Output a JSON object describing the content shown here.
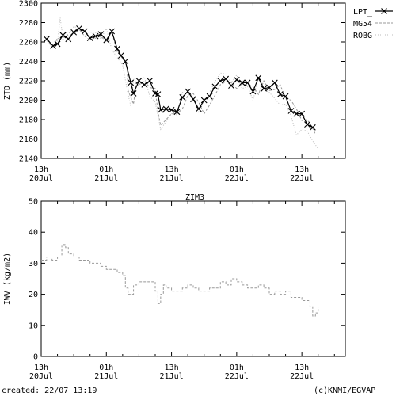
{
  "footer": {
    "created": "created: 22/07 13:19",
    "credit": "(c)KNMI/EGVAP"
  },
  "colors": {
    "axis": "#000000",
    "lpt": "#000000",
    "mg54": "#999999",
    "robg": "#bbbbbb",
    "iwv": "#999999"
  },
  "chart_data": [
    {
      "type": "line",
      "title": "",
      "ylabel": "ZTD (mm)",
      "ylim": [
        2140,
        2300
      ],
      "yticks": [
        2140,
        2160,
        2180,
        2200,
        2220,
        2240,
        2260,
        2280,
        2300
      ],
      "xlim": [
        0,
        56
      ],
      "xticks": [
        {
          "x": 0,
          "top": "13h",
          "bottom": "20Jul"
        },
        {
          "x": 12,
          "top": "01h",
          "bottom": "21Jul"
        },
        {
          "x": 24,
          "top": "13h",
          "bottom": "21Jul"
        },
        {
          "x": 36,
          "top": "01h",
          "bottom": "22Jul"
        },
        {
          "x": 48,
          "top": "13h",
          "bottom": "22Jul"
        }
      ],
      "legend_position": "top-right",
      "series": [
        {
          "name": "LPT_",
          "style": "solid-x",
          "x": [
            1,
            2.2,
            3,
            4,
            5,
            6,
            7,
            8,
            9,
            10,
            11,
            12,
            13,
            14,
            14.7,
            15.5,
            16.5,
            17,
            18,
            19,
            20,
            21,
            21.5,
            22,
            23,
            24,
            25,
            26,
            27,
            28,
            29,
            30,
            31,
            32,
            33,
            34,
            35,
            36,
            37,
            38,
            39,
            40,
            41,
            42,
            43,
            44,
            45,
            46,
            47,
            48,
            49,
            50
          ],
          "y": [
            2263,
            2256,
            2258,
            2267,
            2263,
            2270,
            2274,
            2271,
            2264,
            2266,
            2268,
            2262,
            2271,
            2253,
            2246,
            2240,
            2218,
            2207,
            2220,
            2216,
            2220,
            2207,
            2206,
            2190,
            2191,
            2190,
            2188,
            2203,
            2209,
            2201,
            2191,
            2200,
            2204,
            2214,
            2220,
            2222,
            2215,
            2221,
            2218,
            2218,
            2209,
            2223,
            2212,
            2213,
            2218,
            2206,
            2204,
            2189,
            2186,
            2186,
            2175,
            2172
          ]
        },
        {
          "name": "MG54",
          "style": "dashed",
          "x": [
            1,
            2,
            2.5,
            3,
            4,
            4.5,
            5,
            6,
            7,
            8,
            9,
            10,
            11,
            12,
            13,
            14,
            15,
            15.8,
            16,
            17,
            17.5,
            18,
            19,
            20,
            21,
            21.5,
            22,
            23,
            24,
            25,
            26,
            27,
            28,
            29,
            30,
            31,
            32,
            33,
            34,
            35,
            36,
            37,
            38,
            39,
            40,
            41,
            42,
            43,
            44,
            45,
            46,
            47,
            48,
            49,
            50,
            50.5
          ],
          "y": [
            2262,
            2255,
            2258,
            2264,
            2262,
            2270,
            2266,
            2268,
            2273,
            2266,
            2262,
            2264,
            2266,
            2260,
            2270,
            2250,
            2243,
            2236,
            2210,
            2196,
            2218,
            2216,
            2220,
            2213,
            2212,
            2188,
            2174,
            2180,
            2186,
            2186,
            2191,
            2205,
            2207,
            2198,
            2186,
            2195,
            2205,
            2216,
            2219,
            2218,
            2212,
            2217,
            2215,
            2214,
            2206,
            2220,
            2210,
            2211,
            2216,
            2202,
            2200,
            2191,
            2179,
            2180,
            2171,
            2165
          ]
        },
        {
          "name": "ROBG",
          "style": "dotted",
          "x": [
            1,
            2,
            3,
            3.5,
            4,
            5,
            6,
            7,
            8,
            9,
            10,
            11,
            12,
            13,
            14,
            15,
            16,
            16.5,
            17,
            18,
            19,
            20,
            21,
            22,
            23,
            24,
            25,
            26,
            27,
            28,
            29,
            30,
            31,
            32,
            33,
            34,
            35,
            36,
            37,
            38,
            39,
            40,
            41,
            42,
            43,
            44,
            45,
            46,
            47,
            48,
            49,
            50,
            51
          ],
          "y": [
            2266,
            2254,
            2260,
            2285,
            2264,
            2268,
            2276,
            2274,
            2266,
            2270,
            2270,
            2263,
            2274,
            2252,
            2244,
            2236,
            2206,
            2194,
            2222,
            2214,
            2224,
            2204,
            2198,
            2170,
            2178,
            2186,
            2185,
            2208,
            2211,
            2202,
            2188,
            2200,
            2208,
            2219,
            2228,
            2227,
            2218,
            2226,
            2212,
            2214,
            2200,
            2222,
            2211,
            2208,
            2202,
            2195,
            2196,
            2184,
            2164,
            2170,
            2168,
            2158,
            2150
          ]
        }
      ]
    },
    {
      "type": "line",
      "title": "ZIM3",
      "ylabel": "IWV (kg/m2)",
      "ylim": [
        0,
        50
      ],
      "yticks": [
        0,
        10,
        20,
        30,
        40,
        50
      ],
      "xlim": [
        0,
        56
      ],
      "xticks": [
        {
          "x": 0,
          "top": "13h",
          "bottom": "20Jul"
        },
        {
          "x": 12,
          "top": "01h",
          "bottom": "21Jul"
        },
        {
          "x": 24,
          "top": "13h",
          "bottom": "21Jul"
        },
        {
          "x": 36,
          "top": "01h",
          "bottom": "22Jul"
        },
        {
          "x": 48,
          "top": "13h",
          "bottom": "22Jul"
        }
      ],
      "series": [
        {
          "name": "",
          "style": "dashed-step",
          "x": [
            0,
            1,
            2,
            3,
            3.8,
            4.5,
            5,
            6,
            7,
            8,
            9,
            10,
            11,
            12,
            13,
            14,
            15,
            15.5,
            16,
            17,
            18,
            19,
            20,
            21,
            21.5,
            22,
            22.5,
            23,
            24,
            25,
            26,
            27,
            28,
            29,
            30,
            31,
            32,
            33,
            34,
            35,
            36,
            37,
            38,
            39,
            40,
            41,
            42,
            43,
            44,
            45,
            46,
            47,
            48,
            49,
            49.5,
            50,
            50.5,
            51
          ],
          "y": [
            31,
            32,
            31,
            32,
            36,
            35,
            33,
            32,
            31,
            31,
            30,
            30,
            29,
            28,
            28,
            27,
            26,
            22,
            20,
            23,
            24,
            24,
            24,
            21,
            17,
            20,
            23,
            22,
            21,
            21,
            22,
            23,
            22,
            21,
            21,
            22,
            22,
            24,
            23,
            25,
            24,
            23,
            22,
            22,
            23,
            22,
            20,
            21,
            20,
            21,
            19,
            19,
            18,
            18,
            16,
            13,
            14,
            16
          ]
        }
      ]
    }
  ]
}
